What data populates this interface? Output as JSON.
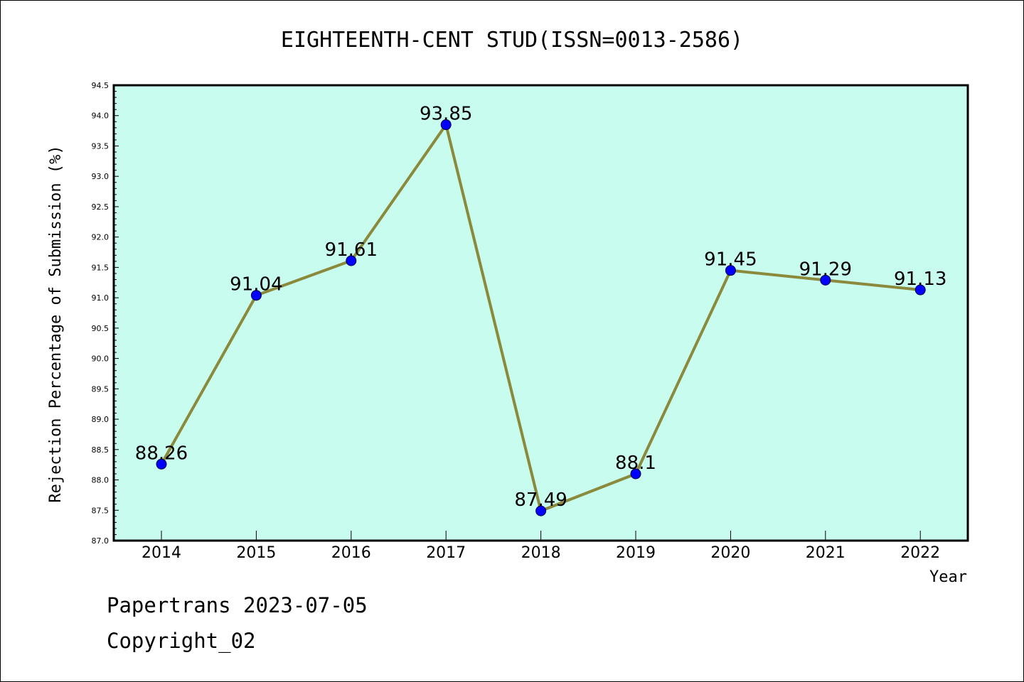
{
  "chart_data": {
    "type": "line",
    "title": "EIGHTEENTH-CENT STUD(ISSN=0013-2586)",
    "xlabel": "Year",
    "ylabel": "Rejection Percentage of Submission (%)",
    "categories": [
      "2014",
      "2015",
      "2016",
      "2017",
      "2018",
      "2019",
      "2020",
      "2021",
      "2022"
    ],
    "series": [
      {
        "values": [
          88.26,
          91.04,
          91.61,
          93.85,
          87.49,
          88.1,
          91.45,
          91.29,
          91.13
        ],
        "data_labels": [
          "88.26",
          "91.04",
          "91.61",
          "93.85",
          "87.49",
          "88.1",
          "91.45",
          "91.29",
          "91.13"
        ]
      }
    ],
    "ylim": [
      87.0,
      94.5
    ],
    "yticks": [
      "87.0",
      "87.5",
      "88.0",
      "88.5",
      "89.0",
      "89.5",
      "90.0",
      "90.5",
      "91.0",
      "91.5",
      "92.0",
      "92.5",
      "93.0",
      "93.5",
      "94.0",
      "94.5"
    ],
    "grid": false,
    "legend": "none",
    "colors": {
      "plot_background": "#c8fcee",
      "line": "#8b8a3c",
      "marker": "#0000ff"
    }
  },
  "footer": {
    "line1": "Papertrans 2023-07-05",
    "line2": "Copyright_02"
  }
}
